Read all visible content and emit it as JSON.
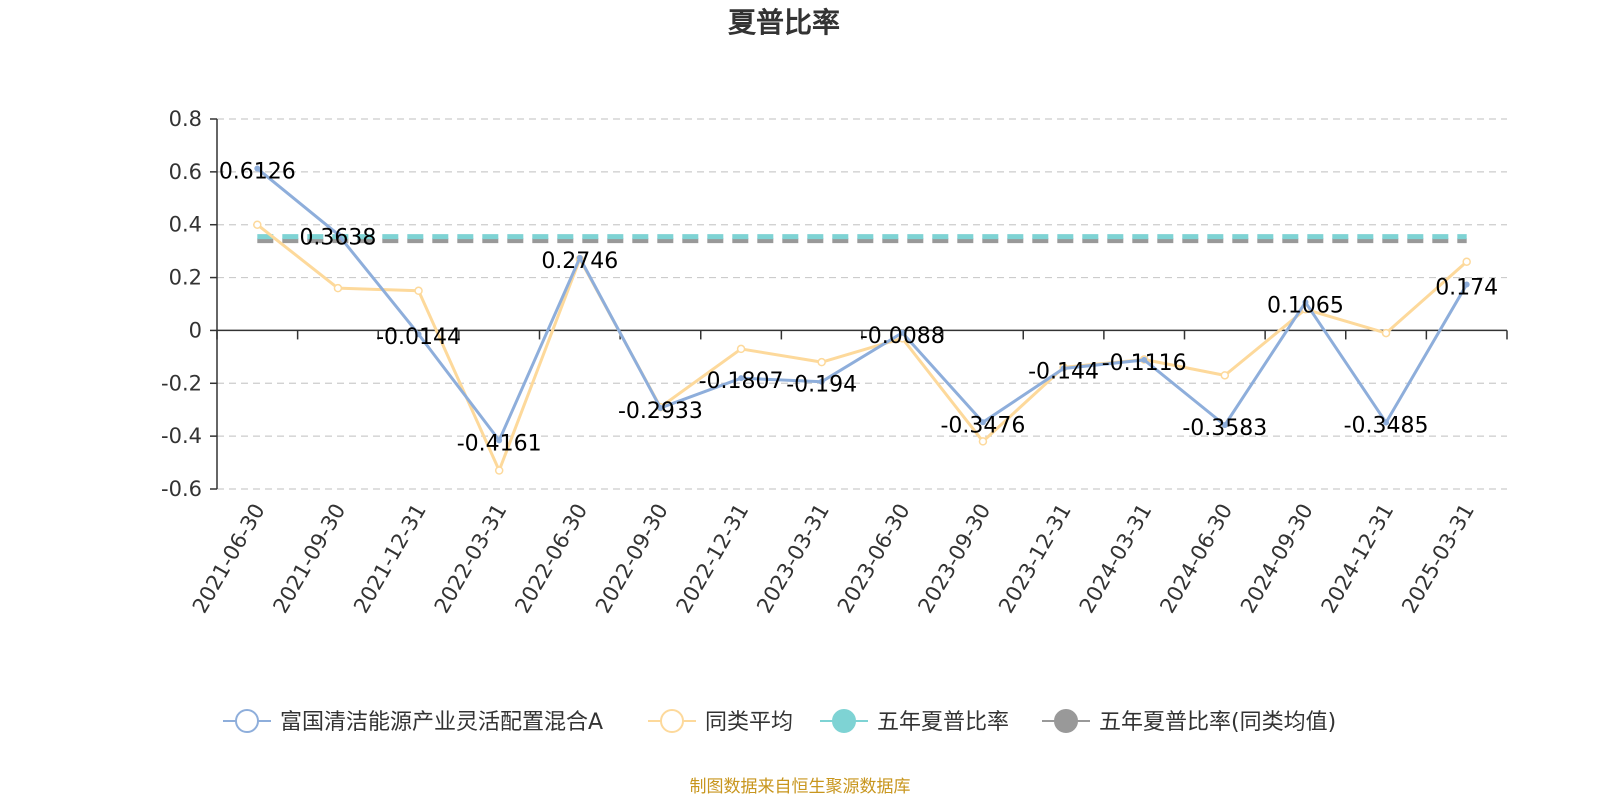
{
  "chart_data": {
    "type": "line",
    "title": "夏普比率",
    "xlabel": "",
    "ylabel": "",
    "categories": [
      "2021-06-30",
      "2021-09-30",
      "2021-12-31",
      "2022-03-31",
      "2022-06-30",
      "2022-09-30",
      "2022-12-31",
      "2023-03-31",
      "2023-06-30",
      "2023-09-30",
      "2023-12-31",
      "2024-03-31",
      "2024-06-30",
      "2024-09-30",
      "2024-12-31",
      "2025-03-31"
    ],
    "y_ticks": [
      "0.8",
      "0.6",
      "0.4",
      "0.2",
      "0",
      "-0.2",
      "-0.4",
      "-0.6"
    ],
    "ylim": [
      -0.6,
      0.8
    ],
    "grid": true,
    "legend_position": "bottom",
    "series": [
      {
        "name": "富国清洁能源产业灵活配置混合A",
        "color": "#8eaedb",
        "values": [
          0.6126,
          0.3638,
          -0.0144,
          -0.4161,
          0.2746,
          -0.2933,
          -0.1807,
          -0.194,
          -0.0088,
          -0.3476,
          -0.144,
          -0.1116,
          -0.3583,
          0.1065,
          -0.3485,
          0.174
        ],
        "labels": [
          "0.6126",
          "0.3638",
          "-0.0144",
          "-0.4161",
          "0.2746",
          "-0.2933",
          "-0.1807",
          "-0.194",
          "-0.0088",
          "-0.3476",
          "-0.144",
          "-0.1116",
          "-0.3583",
          "0.1065",
          "-0.3485",
          "0.174"
        ]
      },
      {
        "name": "同类平均",
        "color": "#fdd99b",
        "values": [
          0.4,
          0.16,
          0.15,
          -0.53,
          0.27,
          -0.29,
          -0.07,
          -0.12,
          -0.03,
          -0.42,
          -0.14,
          -0.11,
          -0.17,
          0.08,
          -0.01,
          0.26
        ]
      },
      {
        "name": "五年夏普比率",
        "color": "#7ed3d4",
        "value": 0.355
      },
      {
        "name": "五年夏普比率(同类均值)",
        "color": "#999999",
        "value": 0.34
      }
    ]
  },
  "source": "制图数据来自恒生聚源数据库"
}
